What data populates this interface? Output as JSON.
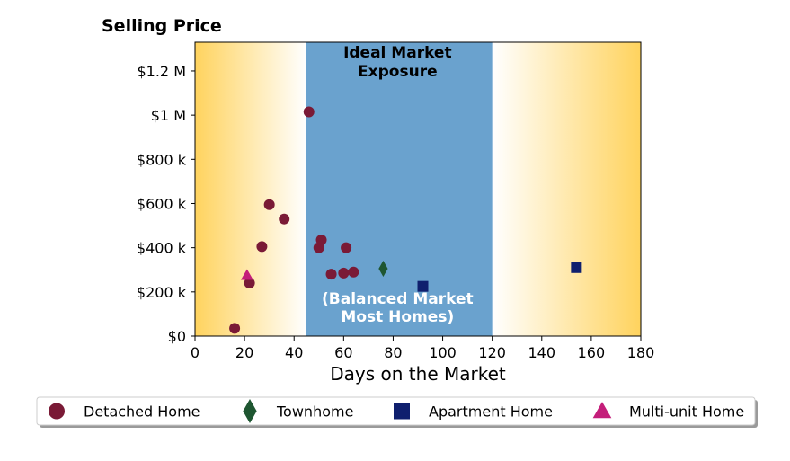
{
  "chart_data": {
    "type": "scatter",
    "title": "Selling Price",
    "xlabel": "Days on the Market",
    "ylabel": "",
    "xlim": [
      0,
      180
    ],
    "ylim": [
      0,
      1330000
    ],
    "x_ticks": [
      0,
      20,
      40,
      60,
      80,
      100,
      120,
      140,
      160,
      180
    ],
    "x_tick_labels": [
      "0",
      "20",
      "40",
      "60",
      "80",
      "100",
      "120",
      "140",
      "160",
      "180"
    ],
    "y_ticks": [
      0,
      200000,
      400000,
      600000,
      800000,
      1000000,
      1200000
    ],
    "y_tick_labels": [
      "$0",
      "$200 k",
      "$400 k",
      "$600 k",
      "$800 k",
      "$1 M",
      "$1.2 M"
    ],
    "grid": false,
    "ideal_zone": {
      "x_range": [
        45,
        120
      ],
      "label": "Ideal Market\nExposure",
      "sublabel": "(Balanced Market\nMost Homes)",
      "color": "#6aa2ce"
    },
    "background_gradient_color": "#ffd35e",
    "legend_placement": "bottom",
    "series": [
      {
        "name": "Detached Home",
        "marker": "circle",
        "color": "#7a1a36",
        "points": [
          [
            16,
            35000
          ],
          [
            22,
            240000
          ],
          [
            27,
            405000
          ],
          [
            30,
            595000
          ],
          [
            36,
            530000
          ],
          [
            46,
            1015000
          ],
          [
            50,
            400000
          ],
          [
            51,
            435000
          ],
          [
            55,
            280000
          ],
          [
            60,
            285000
          ],
          [
            61,
            400000
          ],
          [
            64,
            290000
          ]
        ]
      },
      {
        "name": "Townhome",
        "marker": "diamond",
        "color": "#1e5631",
        "points": [
          [
            76,
            305000
          ]
        ]
      },
      {
        "name": "Apartment Home",
        "marker": "square",
        "color": "#0f1f6e",
        "points": [
          [
            92,
            225000
          ],
          [
            154,
            310000
          ]
        ]
      },
      {
        "name": "Multi-unit Home",
        "marker": "triangle",
        "color": "#c41e7a",
        "points": [
          [
            21,
            275000
          ]
        ]
      }
    ]
  }
}
